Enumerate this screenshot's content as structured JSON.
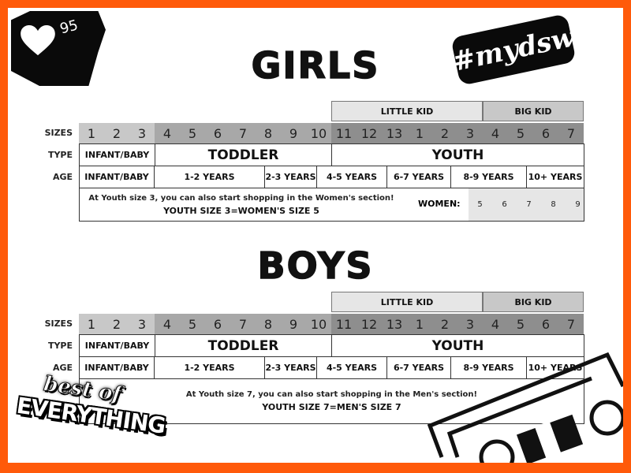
{
  "colors": {
    "frame": "#ff5a0a",
    "infant_band": "#c8c8c8",
    "toddler_band": "#a8a8a8",
    "youth_band": "#8e8e8e",
    "little_kid": "#e6e6e6",
    "big_kid": "#c8c8c8"
  },
  "stickers": {
    "likes_count": "95",
    "likes_icon": "heart-icon",
    "hashtag": "#mydsw",
    "best_of": "best of",
    "everything": "EVERYTHING"
  },
  "row_labels": {
    "sizes": "SIZES",
    "type": "TYPE",
    "age": "AGE"
  },
  "groups": {
    "little_kid": "LITTLE KID",
    "big_kid": "BIG KID"
  },
  "sizes": [
    "1",
    "2",
    "3",
    "4",
    "5",
    "6",
    "7",
    "8",
    "9",
    "10",
    "11",
    "12",
    "13",
    "1",
    "2",
    "3",
    "4",
    "5",
    "6",
    "7"
  ],
  "types": [
    {
      "label": "INFANT/BABY",
      "span": 3
    },
    {
      "label": "TODDLER",
      "span": 7
    },
    {
      "label": "YOUTH",
      "span": 10
    }
  ],
  "ages": [
    "INFANT/BABY",
    "1-2 YEARS",
    "2-3 YEARS",
    "4-5 YEARS",
    "6-7 YEARS",
    "8-9 YEARS",
    "10+ YEARS"
  ],
  "girls": {
    "title": "GIRLS",
    "note": "At Youth size 3, you can also start shopping in the Women's section!",
    "note_bold": "YOUTH SIZE 3=WOMEN'S SIZE 5",
    "women_label": "WOMEN:",
    "women_sizes": [
      "5",
      "6",
      "7",
      "8",
      "9"
    ]
  },
  "boys": {
    "title": "BOYS",
    "note": "At Youth size 7, you can also start shopping in the Men's section!",
    "note_bold": "YOUTH SIZE 7=MEN'S SIZE 7"
  }
}
